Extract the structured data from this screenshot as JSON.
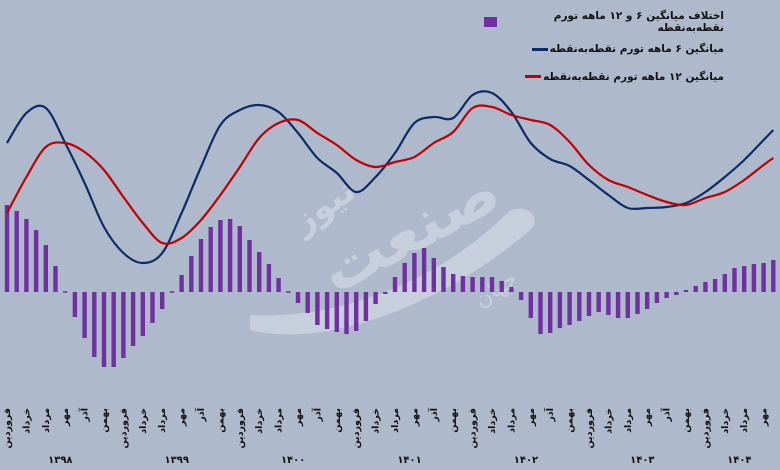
{
  "watermark": {
    "text": "صنعت نیوز",
    "subtext": "جهان"
  },
  "chart_data": {
    "type": "bar+line",
    "title": "",
    "legend_position": "top-right",
    "grid": false,
    "ylim": [
      -9.8,
      29.2
    ],
    "colors": {
      "background": "#afb9cc",
      "diff": "#7030a0",
      "ma6": "#0d2b66",
      "ma12": "#c00000"
    },
    "legend": [
      {
        "key": "diff",
        "label": "اختلاف میانگین ۶ و ۱۲ ماهه تورم نقطه‌به‌نقطه",
        "swatch": "box"
      },
      {
        "key": "ma6",
        "label": "میانگین ۶ ماهه تورم نقطه‌به‌نقطه",
        "swatch": "line"
      },
      {
        "key": "ma12",
        "label": "میانگین ۱۲ ماهه تورم نقطه‌به‌نقطه",
        "swatch": "line"
      }
    ],
    "month_tick_labels": [
      "فروردین",
      "خرداد",
      "مرداد",
      "مهر",
      "آذر",
      "بهمن",
      "فروردین",
      "خرداد",
      "مرداد",
      "مهر",
      "آذر",
      "بهمن",
      "فروردین",
      "خرداد",
      "مرداد",
      "مهر",
      "آذر",
      "بهمن",
      "فروردین",
      "خرداد",
      "مرداد",
      "مهر",
      "آذر",
      "بهمن",
      "فروردین",
      "خرداد",
      "مرداد",
      "مهر",
      "آذر",
      "بهمن",
      "فروردین",
      "خرداد",
      "مرداد",
      "مهر",
      "آذر",
      "بهمن",
      "فروردین",
      "خرداد",
      "مرداد",
      "مهر"
    ],
    "year_labels": [
      {
        "label": "۱۳۹۸",
        "center_month": 5.5
      },
      {
        "label": "۱۳۹۹",
        "center_month": 17.5
      },
      {
        "label": "۱۴۰۰",
        "center_month": 29.5
      },
      {
        "label": "۱۴۰۱",
        "center_month": 41.5
      },
      {
        "label": "۱۴۰۲",
        "center_month": 53.5
      },
      {
        "label": "۱۴۰۳",
        "center_month": 65.5
      },
      {
        "label": "۱۴۰۴",
        "center_month": 75.5
      }
    ],
    "bars": {
      "name": "اختلاف میانگین ۶ و ۱۲ ماهه تورم نقطه‌به‌نقطه",
      "values": [
        8.7,
        8.1,
        7.3,
        6.2,
        4.7,
        2.6,
        0,
        -2.5,
        -4.6,
        -6.5,
        -7.5,
        -7.5,
        -6.6,
        -5.4,
        -4.4,
        -3.1,
        -1.7,
        0,
        1.7,
        3.6,
        5.3,
        6.5,
        7.2,
        7.3,
        6.6,
        5.2,
        4.0,
        2.8,
        1.4,
        0.1,
        -1.1,
        -2.1,
        -3.3,
        -3.7,
        -4.0,
        -4.2,
        -3.9,
        -2.9,
        -1.2,
        -0.2,
        1.5,
        2.9,
        3.9,
        4.4,
        3.4,
        2.5,
        1.8,
        1.6,
        1.5,
        1.5,
        1.5,
        1.1,
        0.5,
        -0.8,
        -2.6,
        -4.2,
        -4.1,
        -3.6,
        -3.3,
        -2.9,
        -2.4,
        -2.0,
        -2.3,
        -2.6,
        -2.6,
        -2.2,
        -1.7,
        -1.1,
        -0.6,
        -0.3,
        0.2,
        0.6,
        1.0,
        1.3,
        1.8,
        2.4,
        2.6,
        2.8,
        2.9,
        3.2
      ]
    },
    "line_x_months": [
      0,
      2,
      4,
      6,
      8,
      10,
      12,
      14,
      16,
      18,
      20,
      22,
      24,
      26,
      28,
      30,
      32,
      34,
      36,
      38,
      40,
      42,
      44,
      46,
      48,
      50,
      52,
      54,
      56,
      58,
      60,
      62,
      64,
      66,
      68,
      70,
      72,
      74,
      76,
      78,
      79
    ],
    "series": [
      {
        "key": "ma6",
        "name": "میانگین ۶ ماهه تورم نقطه‌به‌نقطه",
        "values": [
          14.9,
          17.9,
          18.4,
          14.9,
          10.9,
          6.5,
          3.9,
          2.9,
          3.9,
          7.9,
          12.5,
          16.7,
          18.2,
          18.7,
          18.0,
          15.9,
          13.4,
          11.9,
          10.0,
          11.5,
          13.9,
          16.9,
          17.5,
          17.4,
          19.7,
          19.9,
          18.0,
          14.9,
          13.3,
          12.6,
          11.2,
          9.7,
          8.4,
          8.4,
          8.5,
          8.9,
          10.0,
          11.5,
          13.2,
          15.2,
          16.2
        ]
      },
      {
        "key": "ma12",
        "name": "میانگین ۱۲ ماهه تورم نقطه‌به‌نقطه",
        "values": [
          7.9,
          11.5,
          14.5,
          14.9,
          14.0,
          12.2,
          9.5,
          6.9,
          4.9,
          5.4,
          7.2,
          9.7,
          12.5,
          15.4,
          16.9,
          17.2,
          15.9,
          14.7,
          13.2,
          12.5,
          13.0,
          13.5,
          14.9,
          16.0,
          18.4,
          18.5,
          17.7,
          17.2,
          16.7,
          15.0,
          12.7,
          11.2,
          10.5,
          9.7,
          9.0,
          8.7,
          9.4,
          10.0,
          11.2,
          12.7,
          13.4
        ]
      }
    ]
  }
}
